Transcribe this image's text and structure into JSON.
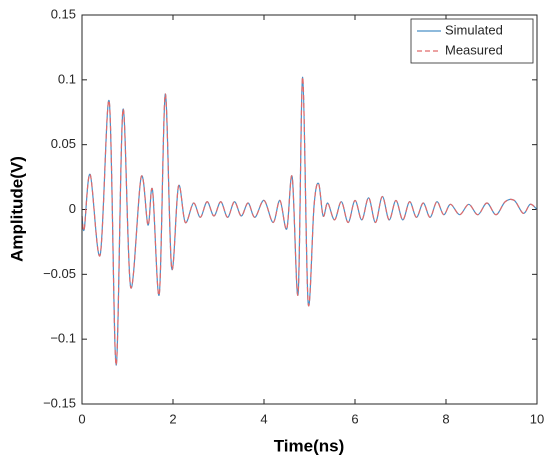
{
  "chart_data": {
    "type": "line",
    "xlabel": "Time(ns)",
    "ylabel": "Amplitude(V)",
    "x": [
      0,
      0.05,
      0.18,
      0.4,
      0.6,
      0.75,
      0.9,
      1.07,
      1.3,
      1.45,
      1.55,
      1.7,
      1.83,
      1.97,
      2.12,
      2.27,
      2.45,
      2.6,
      2.75,
      2.9,
      3.05,
      3.2,
      3.35,
      3.5,
      3.65,
      3.8,
      4.0,
      4.2,
      4.35,
      4.5,
      4.62,
      4.75,
      4.85,
      4.97,
      5.1,
      5.2,
      5.3,
      5.4,
      5.55,
      5.7,
      5.85,
      6.0,
      6.15,
      6.3,
      6.45,
      6.6,
      6.75,
      6.9,
      7.05,
      7.2,
      7.35,
      7.5,
      7.65,
      7.8,
      7.95,
      8.1,
      8.3,
      8.5,
      8.7,
      8.9,
      9.1,
      9.3,
      9.5,
      9.7,
      9.85,
      10
    ],
    "series": [
      {
        "name": "Simulated",
        "color": "#4a90c8",
        "dash": false,
        "values": [
          -0.005,
          -0.015,
          0.027,
          -0.035,
          0.083,
          -0.12,
          0.077,
          -0.06,
          0.025,
          -0.012,
          0.015,
          -0.065,
          0.089,
          -0.045,
          0.018,
          -0.01,
          0.005,
          -0.006,
          0.006,
          -0.005,
          0.006,
          -0.006,
          0.006,
          -0.005,
          0.005,
          -0.006,
          0.007,
          -0.01,
          0.007,
          -0.015,
          0.025,
          -0.065,
          0.102,
          -0.072,
          0.003,
          0.02,
          -0.005,
          0.005,
          -0.008,
          0.006,
          -0.01,
          0.007,
          -0.008,
          0.009,
          -0.01,
          0.01,
          -0.008,
          0.007,
          -0.008,
          0.006,
          -0.006,
          0.005,
          -0.006,
          0.006,
          -0.004,
          0.004,
          -0.004,
          0.004,
          -0.004,
          0.005,
          -0.004,
          0.006,
          0.007,
          -0.003,
          0.004,
          0
        ]
      },
      {
        "name": "Measured",
        "color": "#e06a6a",
        "dash": true,
        "values": [
          -0.005,
          -0.015,
          0.027,
          -0.035,
          0.083,
          -0.12,
          0.077,
          -0.06,
          0.025,
          -0.012,
          0.015,
          -0.065,
          0.089,
          -0.045,
          0.018,
          -0.01,
          0.005,
          -0.006,
          0.006,
          -0.005,
          0.006,
          -0.006,
          0.006,
          -0.005,
          0.005,
          -0.006,
          0.007,
          -0.01,
          0.007,
          -0.015,
          0.025,
          -0.065,
          0.102,
          -0.072,
          0.003,
          0.02,
          -0.005,
          0.005,
          -0.008,
          0.006,
          -0.01,
          0.007,
          -0.008,
          0.009,
          -0.01,
          0.01,
          -0.008,
          0.007,
          -0.008,
          0.006,
          -0.006,
          0.005,
          -0.006,
          0.006,
          -0.004,
          0.004,
          -0.004,
          0.004,
          -0.004,
          0.005,
          -0.004,
          0.006,
          0.007,
          -0.003,
          0.004,
          0
        ]
      }
    ],
    "xlim": [
      0,
      10
    ],
    "xticks": [
      0,
      2,
      4,
      6,
      8,
      10
    ],
    "ylim": [
      -0.15,
      0.15
    ],
    "yticks": [
      {
        "value": -0.15,
        "label": "−0.15"
      },
      {
        "value": -0.1,
        "label": "−0.1"
      },
      {
        "value": -0.05,
        "label": "−0.05"
      },
      0,
      0.05,
      0.1,
      0.15
    ],
    "legend": "northeast",
    "grid": false
  }
}
